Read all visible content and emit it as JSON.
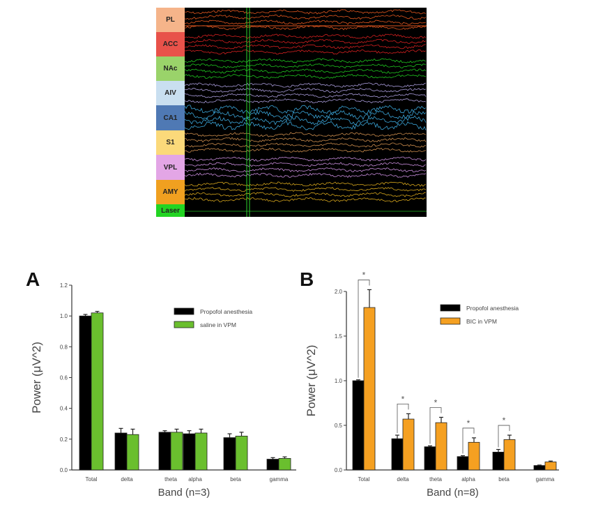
{
  "eeg_panel": {
    "channels": [
      {
        "label": "PL",
        "label_color": "#f5b48a",
        "trace_color": "#e0561f"
      },
      {
        "label": "ACC",
        "label_color": "#e8524a",
        "trace_color": "#d42020"
      },
      {
        "label": "NAc",
        "label_color": "#9ad36a",
        "trace_color": "#1fc41f"
      },
      {
        "label": "AIV",
        "label_color": "#c9dff0",
        "trace_color": "#a79ad8"
      },
      {
        "label": "CA1",
        "label_color": "#4f79b4",
        "trace_color": "#3aa3d6"
      },
      {
        "label": "S1",
        "label_color": "#fbd97a",
        "trace_color": "#c98b4c"
      },
      {
        "label": "VPL",
        "label_color": "#e3a6e6",
        "trace_color": "#c58ad8"
      },
      {
        "label": "AMY",
        "label_color": "#f0a020",
        "trace_color": "#d4a41c"
      },
      {
        "label": "Laser",
        "label_color": "#22d422",
        "trace_color": "#1a8a1a"
      }
    ]
  },
  "chart_data": [
    {
      "panel": "A",
      "type": "bar",
      "ylabel": "Power (μV^2)",
      "xlabel": "Band (n=3)",
      "ylim": [
        0,
        1.2
      ],
      "yticks": [
        "0.0",
        "0.2",
        "0.4",
        "0.6",
        "0.8",
        "1.0",
        "1.2"
      ],
      "categories": [
        "Total",
        "delta",
        "theta",
        "alpha",
        "beta",
        "gamma"
      ],
      "legend_position": "top-right",
      "series": [
        {
          "name": "Propofol anesthesia",
          "color": "#000000",
          "values": [
            1.0,
            0.24,
            0.245,
            0.235,
            0.21,
            0.07
          ],
          "errors": [
            0.01,
            0.03,
            0.01,
            0.02,
            0.025,
            0.01
          ]
        },
        {
          "name": "saline in VPM",
          "color": "#6abf2e",
          "values": [
            1.02,
            0.23,
            0.245,
            0.24,
            0.22,
            0.075
          ],
          "errors": [
            0.01,
            0.035,
            0.02,
            0.025,
            0.025,
            0.01
          ]
        }
      ],
      "significance": []
    },
    {
      "panel": "B",
      "type": "bar",
      "ylabel": "Power (μV^2)",
      "xlabel": "Band (n=8)",
      "ylim": [
        0,
        2.0
      ],
      "yticks": [
        "0.0",
        "0.5",
        "1.0",
        "1.5",
        "2.0"
      ],
      "categories": [
        "Total",
        "delta",
        "theta",
        "alpha",
        "beta",
        "gamma"
      ],
      "legend_position": "top-right",
      "series": [
        {
          "name": "Propofol anesthesia",
          "color": "#000000",
          "values": [
            1.0,
            0.35,
            0.26,
            0.15,
            0.2,
            0.05
          ],
          "errors": [
            0.01,
            0.04,
            0.01,
            0.01,
            0.03,
            0.005
          ]
        },
        {
          "name": "BIC in VPM",
          "color": "#f5a021",
          "values": [
            1.82,
            0.57,
            0.53,
            0.31,
            0.34,
            0.09
          ],
          "errors": [
            0.2,
            0.06,
            0.06,
            0.05,
            0.05,
            0.01
          ]
        }
      ],
      "significance": [
        {
          "category": "Total",
          "mark": "*"
        },
        {
          "category": "delta",
          "mark": "*"
        },
        {
          "category": "theta",
          "mark": "*"
        },
        {
          "category": "alpha",
          "mark": "*"
        },
        {
          "category": "beta",
          "mark": "*"
        }
      ]
    }
  ]
}
